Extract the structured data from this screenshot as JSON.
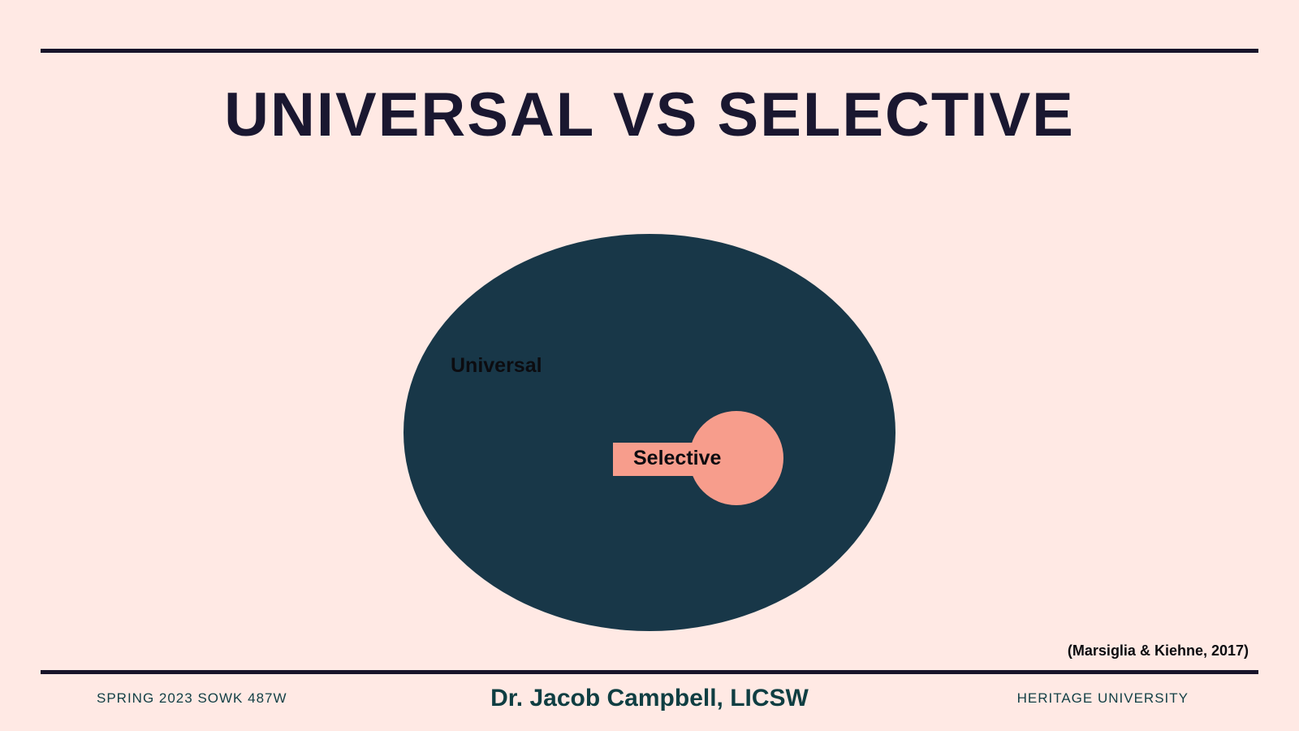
{
  "slide": {
    "title": "UNIVERSAL VS SELECTIVE",
    "citation": "(Marsiglia & Kiehne, 2017)"
  },
  "diagram": {
    "outer_label": "Universal",
    "inner_label": "Selective",
    "colors": {
      "background": "#ffe9e4",
      "outer": "#183748",
      "inner": "#f79d8c",
      "rule": "#18142a"
    }
  },
  "footer": {
    "left": "SPRING 2023 SOWK 487W",
    "center": "Dr. Jacob Campbell, LICSW",
    "right": "HERITAGE UNIVERSITY"
  }
}
